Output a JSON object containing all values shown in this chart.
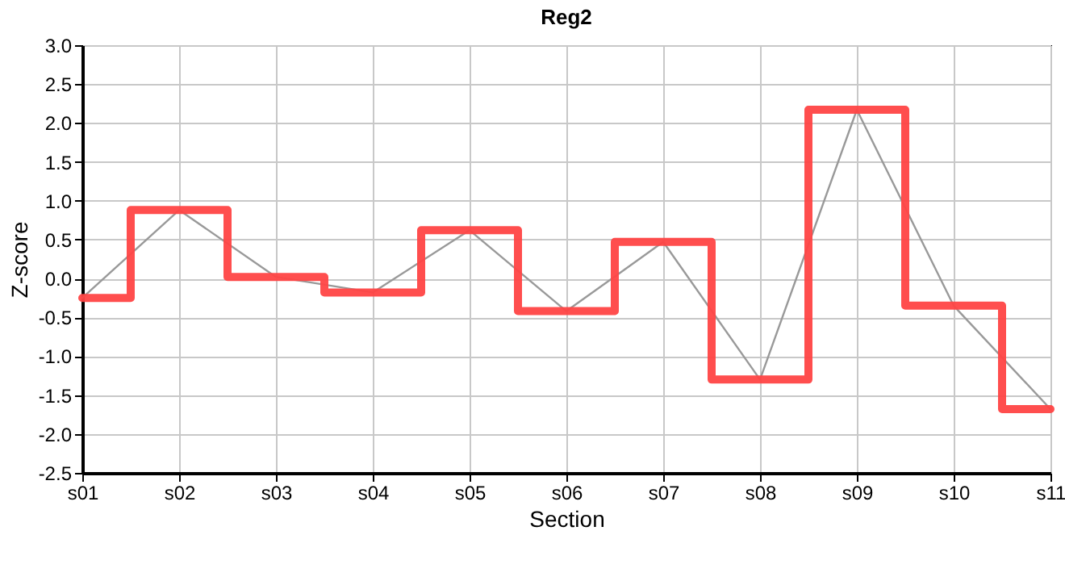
{
  "chart_data": {
    "type": "step",
    "title": "Reg2",
    "xlabel": "Section",
    "ylabel": "Z-score",
    "categories": [
      "s01",
      "s02",
      "s03",
      "s04",
      "s05",
      "s06",
      "s07",
      "s08",
      "s09",
      "s10",
      "s11"
    ],
    "series": [
      {
        "type": "step",
        "color": "#ff4444",
        "values": [
          -0.25,
          0.88,
          0.02,
          -0.18,
          0.62,
          -0.42,
          0.47,
          -1.3,
          2.17,
          -0.35,
          -1.68
        ]
      },
      {
        "type": "line",
        "color": "#999999",
        "values": [
          -0.25,
          0.88,
          0.02,
          -0.18,
          0.62,
          -0.42,
          0.47,
          -1.3,
          2.17,
          -0.35,
          -1.68
        ]
      }
    ],
    "ylim": [
      -2.5,
      3.0
    ],
    "yticks": [
      {
        "value": -2.5,
        "label": "-2.5"
      },
      {
        "value": -2,
        "label": "-2.0"
      },
      {
        "value": -1.5,
        "label": "-1.5"
      },
      {
        "value": -1,
        "label": "-1.0"
      },
      {
        "value": -0.5,
        "label": "-0.5"
      },
      {
        "value": 0,
        "label": "0.0"
      },
      {
        "value": 0.5,
        "label": "0.5"
      },
      {
        "value": 1,
        "label": "1.0"
      },
      {
        "value": 1.5,
        "label": "1.5"
      },
      {
        "value": 2,
        "label": "2.0"
      },
      {
        "value": 2.5,
        "label": "2.5"
      },
      {
        "value": 3,
        "label": "3.0"
      }
    ],
    "grid": true
  }
}
